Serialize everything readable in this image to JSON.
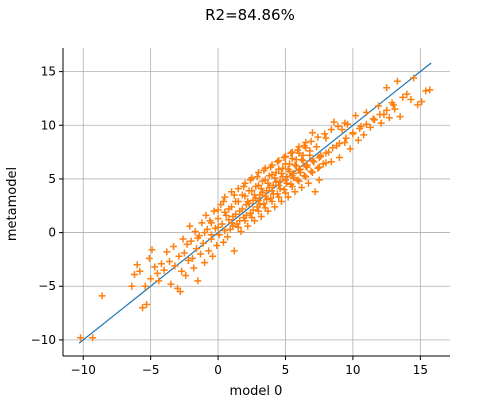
{
  "chart_data": {
    "type": "scatter",
    "title": "R2=84.86%",
    "xlabel": "model 0",
    "ylabel": "metamodel",
    "xlim": [
      -11.5,
      17.2
    ],
    "ylim": [
      -11.5,
      17.2
    ],
    "grid": true,
    "x_ticks": [
      -10,
      -5,
      0,
      5,
      10,
      15
    ],
    "x_tick_labels": [
      "−10",
      "−5",
      "0",
      "5",
      "10",
      "15"
    ],
    "y_ticks": [
      -10,
      -5,
      0,
      5,
      10,
      15
    ],
    "y_tick_labels": [
      "−10",
      "−5",
      "0",
      "5",
      "10",
      "15"
    ],
    "reference_line": {
      "x": [
        -10.3,
        15.8
      ],
      "y": [
        -10.3,
        15.8
      ],
      "color": "#1f77b4"
    },
    "series": [
      {
        "marker": "+",
        "color": "#ff7f0e",
        "points": [
          [
            -10.2,
            -9.8
          ],
          [
            -9.3,
            -9.8
          ],
          [
            -8.6,
            -5.9
          ],
          [
            -6.4,
            -5.0
          ],
          [
            -6.2,
            -3.9
          ],
          [
            -6.0,
            -3.0
          ],
          [
            -5.8,
            -3.6
          ],
          [
            -5.6,
            -7.0
          ],
          [
            -5.4,
            -5.0
          ],
          [
            -5.3,
            -6.7
          ],
          [
            -5.1,
            -2.4
          ],
          [
            -5.0,
            -4.3
          ],
          [
            -4.9,
            -1.6
          ],
          [
            -4.7,
            -3.2
          ],
          [
            -4.5,
            -3.8
          ],
          [
            -4.4,
            -4.5
          ],
          [
            -4.2,
            -2.9
          ],
          [
            -4.0,
            -3.5
          ],
          [
            -3.8,
            -1.8
          ],
          [
            -3.6,
            -2.7
          ],
          [
            -3.5,
            -4.8
          ],
          [
            -3.3,
            -1.3
          ],
          [
            -3.2,
            -3.1
          ],
          [
            -3.0,
            -5.2
          ],
          [
            -2.9,
            -2.2
          ],
          [
            -2.8,
            -5.5
          ],
          [
            -2.7,
            -3.6
          ],
          [
            -2.6,
            -0.6
          ],
          [
            -2.5,
            -1.9
          ],
          [
            -2.4,
            -4.0
          ],
          [
            -2.3,
            -1.1
          ],
          [
            -2.2,
            -2.6
          ],
          [
            -2.1,
            0.6
          ],
          [
            -2.0,
            -0.8
          ],
          [
            -1.9,
            -2.4
          ],
          [
            -1.8,
            -3.3
          ],
          [
            -1.7,
            0.1
          ],
          [
            -1.6,
            -1.5
          ],
          [
            -1.5,
            -4.5
          ],
          [
            -1.4,
            -0.3
          ],
          [
            -1.3,
            -2.0
          ],
          [
            -1.2,
            0.9
          ],
          [
            -1.1,
            -1.0
          ],
          [
            -1.0,
            -2.8
          ],
          [
            -0.9,
            1.6
          ],
          [
            -0.8,
            0.3
          ],
          [
            -0.7,
            -1.7
          ],
          [
            -0.6,
            1.1
          ],
          [
            -0.5,
            -0.6
          ],
          [
            -0.4,
            -2.2
          ],
          [
            -0.3,
            2.0
          ],
          [
            -0.2,
            0.4
          ],
          [
            -0.1,
            -1.2
          ],
          [
            0.0,
            1.3
          ],
          [
            0.1,
            -0.2
          ],
          [
            0.2,
            2.6
          ],
          [
            0.3,
            0.8
          ],
          [
            0.4,
            -0.9
          ],
          [
            0.5,
            3.3
          ],
          [
            0.6,
            1.6
          ],
          [
            0.7,
            -0.4
          ],
          [
            0.8,
            2.2
          ],
          [
            0.9,
            0.3
          ],
          [
            1.0,
            3.8
          ],
          [
            1.1,
            1.5
          ],
          [
            1.2,
            -1.7
          ],
          [
            1.3,
            2.9
          ],
          [
            1.4,
            0.8
          ],
          [
            1.5,
            4.1
          ],
          [
            1.6,
            2.0
          ],
          [
            1.7,
            0.1
          ],
          [
            1.8,
            3.5
          ],
          [
            1.9,
            1.4
          ],
          [
            2.0,
            4.6
          ],
          [
            2.1,
            2.6
          ],
          [
            2.2,
            0.6
          ],
          [
            2.3,
            3.9
          ],
          [
            2.4,
            1.8
          ],
          [
            2.5,
            5.1
          ],
          [
            2.6,
            3.0
          ],
          [
            2.7,
            1.1
          ],
          [
            2.8,
            4.3
          ],
          [
            2.9,
            2.4
          ],
          [
            3.0,
            5.6
          ],
          [
            3.1,
            3.5
          ],
          [
            3.2,
            1.5
          ],
          [
            3.3,
            4.8
          ],
          [
            3.4,
            2.7
          ],
          [
            3.5,
            6.0
          ],
          [
            3.6,
            3.9
          ],
          [
            3.7,
            2.0
          ],
          [
            3.8,
            5.3
          ],
          [
            3.9,
            3.2
          ],
          [
            4.0,
            6.3
          ],
          [
            4.1,
            4.4
          ],
          [
            4.2,
            2.4
          ],
          [
            4.3,
            5.6
          ],
          [
            4.4,
            3.6
          ],
          [
            4.5,
            6.7
          ],
          [
            4.6,
            4.8
          ],
          [
            4.7,
            2.9
          ],
          [
            4.8,
            6.0
          ],
          [
            4.9,
            4.0
          ],
          [
            5.0,
            7.1
          ],
          [
            5.1,
            5.2
          ],
          [
            5.2,
            3.3
          ],
          [
            5.3,
            6.4
          ],
          [
            5.4,
            4.5
          ],
          [
            5.5,
            7.5
          ],
          [
            5.6,
            5.5
          ],
          [
            5.7,
            3.8
          ],
          [
            5.8,
            6.8
          ],
          [
            5.9,
            4.9
          ],
          [
            6.0,
            8.0
          ],
          [
            6.1,
            5.9
          ],
          [
            6.2,
            4.2
          ],
          [
            6.3,
            7.2
          ],
          [
            6.4,
            5.3
          ],
          [
            6.5,
            8.4
          ],
          [
            6.6,
            6.3
          ],
          [
            6.7,
            4.6
          ],
          [
            6.8,
            7.6
          ],
          [
            6.9,
            5.7
          ],
          [
            7.0,
            9.3
          ],
          [
            7.1,
            6.6
          ],
          [
            7.2,
            3.8
          ],
          [
            7.3,
            8.0
          ],
          [
            7.4,
            6.0
          ],
          [
            7.5,
            4.9
          ],
          [
            7.6,
            7.2
          ],
          [
            7.8,
            6.4
          ],
          [
            8.0,
            8.8
          ],
          [
            8.2,
            7.5
          ],
          [
            8.4,
            6.6
          ],
          [
            8.6,
            10.3
          ],
          [
            8.8,
            8.1
          ],
          [
            9.0,
            7.0
          ],
          [
            9.2,
            9.6
          ],
          [
            9.4,
            8.4
          ],
          [
            9.6,
            10.1
          ],
          [
            9.8,
            7.8
          ],
          [
            10.0,
            9.3
          ],
          [
            10.2,
            10.9
          ],
          [
            10.4,
            8.6
          ],
          [
            10.6,
            9.9
          ],
          [
            10.8,
            9.1
          ],
          [
            11.0,
            11.2
          ],
          [
            11.3,
            9.8
          ],
          [
            11.6,
            10.5
          ],
          [
            11.9,
            11.8
          ],
          [
            12.1,
            10.2
          ],
          [
            12.3,
            11.0
          ],
          [
            12.5,
            13.5
          ],
          [
            12.7,
            10.7
          ],
          [
            12.9,
            12.1
          ],
          [
            13.1,
            11.5
          ],
          [
            13.3,
            14.1
          ],
          [
            13.5,
            10.8
          ],
          [
            13.7,
            12.6
          ],
          [
            14.0,
            12.9
          ],
          [
            14.3,
            12.4
          ],
          [
            14.5,
            14.4
          ],
          [
            14.8,
            11.9
          ],
          [
            15.1,
            12.2
          ],
          [
            15.4,
            13.2
          ],
          [
            15.7,
            13.3
          ],
          [
            0.5,
            1.9
          ],
          [
            1.0,
            2.4
          ],
          [
            1.5,
            2.9
          ],
          [
            2.0,
            3.4
          ],
          [
            2.5,
            3.9
          ],
          [
            3.0,
            4.4
          ],
          [
            3.5,
            4.9
          ],
          [
            4.0,
            5.4
          ],
          [
            4.5,
            5.9
          ],
          [
            5.0,
            6.4
          ],
          [
            5.5,
            6.9
          ],
          [
            6.0,
            7.4
          ],
          [
            6.5,
            7.9
          ],
          [
            0.8,
            1.2
          ],
          [
            1.3,
            1.7
          ],
          [
            1.8,
            2.2
          ],
          [
            2.3,
            2.7
          ],
          [
            2.8,
            3.2
          ],
          [
            3.3,
            3.7
          ],
          [
            3.8,
            4.2
          ],
          [
            4.3,
            4.7
          ],
          [
            4.8,
            5.2
          ],
          [
            5.3,
            5.7
          ],
          [
            5.8,
            6.2
          ],
          [
            6.3,
            6.7
          ],
          [
            6.8,
            7.2
          ],
          [
            1.1,
            0.6
          ],
          [
            1.6,
            1.1
          ],
          [
            2.1,
            1.6
          ],
          [
            2.6,
            2.1
          ],
          [
            3.1,
            2.6
          ],
          [
            3.6,
            3.1
          ],
          [
            4.1,
            3.6
          ],
          [
            4.6,
            4.1
          ],
          [
            5.1,
            4.6
          ],
          [
            5.6,
            5.1
          ],
          [
            6.1,
            5.6
          ],
          [
            6.6,
            6.1
          ],
          [
            7.1,
            6.6
          ],
          [
            7.6,
            7.1
          ],
          [
            -0.5,
            0.9
          ],
          [
            0.0,
            2.1
          ],
          [
            0.4,
            2.9
          ],
          [
            1.2,
            3.5
          ],
          [
            1.9,
            4.3
          ],
          [
            2.4,
            4.9
          ],
          [
            2.9,
            5.2
          ],
          [
            3.4,
            5.8
          ],
          [
            3.9,
            6.1
          ],
          [
            4.4,
            6.6
          ],
          [
            4.9,
            7.0
          ],
          [
            5.4,
            7.4
          ],
          [
            5.9,
            7.7
          ],
          [
            6.4,
            8.1
          ],
          [
            6.9,
            8.5
          ],
          [
            7.4,
            8.9
          ],
          [
            7.9,
            9.2
          ],
          [
            8.4,
            9.6
          ],
          [
            8.9,
            9.9
          ],
          [
            9.4,
            10.2
          ],
          [
            2.2,
            2.9
          ],
          [
            2.7,
            3.5
          ],
          [
            3.2,
            4.1
          ],
          [
            3.7,
            4.6
          ],
          [
            4.2,
            5.1
          ],
          [
            4.7,
            5.5
          ],
          [
            5.2,
            5.9
          ],
          [
            5.7,
            6.3
          ],
          [
            6.2,
            6.8
          ],
          [
            3.0,
            3.0
          ],
          [
            3.5,
            3.4
          ],
          [
            4.0,
            3.9
          ],
          [
            4.5,
            4.4
          ],
          [
            5.0,
            4.9
          ],
          [
            5.5,
            5.3
          ],
          [
            6.0,
            5.8
          ],
          [
            6.5,
            6.2
          ],
          [
            7.0,
            6.7
          ],
          [
            7.5,
            7.0
          ],
          [
            8.0,
            7.4
          ],
          [
            8.5,
            7.9
          ],
          [
            9.0,
            8.3
          ],
          [
            9.5,
            8.8
          ],
          [
            10.0,
            9.2
          ],
          [
            10.5,
            9.7
          ],
          [
            11.0,
            10.1
          ],
          [
            11.5,
            10.6
          ],
          [
            12.0,
            11.0
          ],
          [
            12.5,
            11.4
          ],
          [
            13.0,
            11.9
          ],
          [
            -1.5,
            -0.5
          ],
          [
            -1.0,
            0.0
          ],
          [
            -0.5,
            -0.2
          ],
          [
            0.0,
            0.5
          ],
          [
            0.5,
            0.2
          ],
          [
            1.0,
            0.9
          ],
          [
            1.5,
            0.5
          ],
          [
            2.0,
            1.1
          ],
          [
            2.5,
            1.4
          ],
          [
            3.0,
            2.0
          ],
          [
            3.5,
            2.3
          ],
          [
            4.0,
            2.9
          ],
          [
            4.5,
            3.3
          ],
          [
            5.0,
            3.7
          ],
          [
            5.5,
            4.3
          ],
          [
            6.0,
            4.8
          ],
          [
            6.5,
            5.2
          ],
          [
            7.0,
            5.6
          ],
          [
            7.5,
            6.1
          ],
          [
            8.0,
            6.5
          ]
        ]
      }
    ]
  }
}
